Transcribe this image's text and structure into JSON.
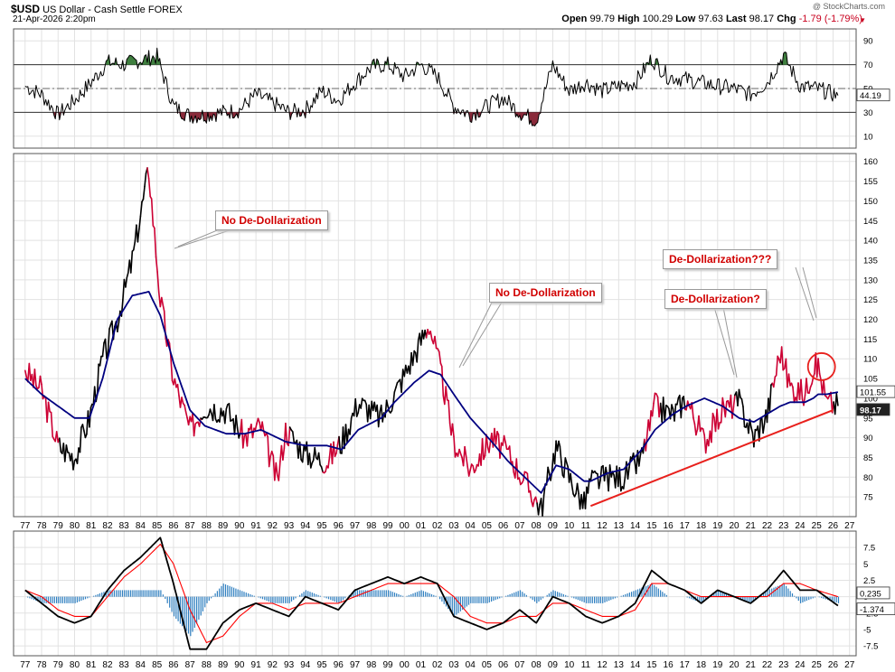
{
  "header": {
    "symbol": "$USD",
    "name": "US Dollar - Cash Settle",
    "exchange": "FOREX",
    "watermark": "@ StockCharts.com",
    "date": "21-Apr-2026 2:20pm",
    "open_label": "Open",
    "open": "99.79",
    "high_label": "High",
    "high": "100.29",
    "low_label": "Low",
    "low": "97.63",
    "last_label": "Last",
    "last": "98.17",
    "chg_label": "Chg",
    "chg": "-1.79 (-1.79%)"
  },
  "annotations": [
    {
      "id": "no-dedollar-1",
      "text": "No De-Dollarization"
    },
    {
      "id": "no-dedollar-2",
      "text": "No De-Dollarization"
    },
    {
      "id": "dedollar-q1",
      "text": "De-Dollarization?"
    },
    {
      "id": "dedollar-q3",
      "text": "De-Dollarization???"
    }
  ],
  "chart_data": [
    {
      "type": "line",
      "panel": "RSI (top indicator)",
      "x": [
        1977,
        1978,
        1979,
        1980,
        1981,
        1982,
        1983,
        1984,
        1985,
        1986,
        1987,
        1988,
        1989,
        1990,
        1991,
        1992,
        1993,
        1994,
        1995,
        1996,
        1997,
        1998,
        1999,
        2000,
        2001,
        2002,
        2003,
        2004,
        2005,
        2006,
        2007,
        2008,
        2009,
        2010,
        2011,
        2012,
        2013,
        2014,
        2015,
        2016,
        2017,
        2018,
        2019,
        2020,
        2021,
        2022,
        2023,
        2024,
        2025,
        2026.3
      ],
      "series": [
        {
          "name": "RSI",
          "values": [
            52,
            45,
            28,
            40,
            55,
            72,
            70,
            74,
            77,
            35,
            27,
            28,
            30,
            32,
            45,
            38,
            30,
            32,
            48,
            40,
            55,
            68,
            70,
            60,
            70,
            60,
            35,
            28,
            35,
            42,
            30,
            23,
            70,
            48,
            55,
            48,
            52,
            55,
            75,
            60,
            58,
            55,
            52,
            50,
            45,
            55,
            78,
            52,
            50,
            44.19
          ]
        }
      ],
      "yticks": [
        10,
        30,
        50,
        70,
        90
      ],
      "reference_lines": [
        70,
        30
      ],
      "last_value_label": "44.19",
      "ylim": [
        0,
        100
      ]
    },
    {
      "type": "line",
      "panel": "Price (monthly)",
      "title": "$USD US Dollar - Cash Settle FOREX",
      "x": [
        1977,
        1978,
        1979,
        1980,
        1980.9,
        1981.7,
        1982.6,
        1983.5,
        1984.5,
        1985.2,
        1986,
        1987,
        1987.9,
        1989.2,
        1990.3,
        1991.3,
        1992.3,
        1992.8,
        1994,
        1995.3,
        1996.2,
        1997.2,
        1998.6,
        1999.4,
        2000.6,
        2001.5,
        2002.2,
        2003,
        2004,
        2005.3,
        2006.3,
        2007.3,
        2008.3,
        2009.2,
        2010,
        2010.9,
        2011.3,
        2012.3,
        2013.3,
        2014.4,
        2015.2,
        2016.3,
        2017.1,
        2018.2,
        2019.3,
        2020.3,
        2021.2,
        2022,
        2022.8,
        2023.4,
        2024.3,
        2024.8,
        2025.1,
        2025.6,
        2026.3
      ],
      "series": [
        {
          "name": "Price",
          "values": [
            107,
            102,
            88,
            85,
            95,
            110,
            120,
            135,
            158,
            125,
            105,
            92,
            98,
            97,
            90,
            93,
            79,
            92,
            86,
            84,
            89,
            99,
            95,
            101,
            111,
            119,
            107,
            89,
            82,
            90,
            86,
            79,
            72,
            88,
            80,
            73,
            79,
            80,
            80,
            85,
            98,
            96,
            100,
            89,
            97,
            99,
            90,
            96,
            112,
            103,
            101,
            108,
            108,
            99,
            98.17
          ]
        },
        {
          "name": "Moving average",
          "values": [
            105,
            101,
            98,
            95,
            95,
            105,
            120,
            126,
            127,
            121,
            109,
            97,
            93,
            91,
            91,
            92,
            90,
            89,
            88,
            88,
            87,
            92,
            95,
            99,
            104,
            107,
            106,
            101,
            95,
            89,
            84,
            80,
            76,
            83,
            82,
            79,
            79,
            81,
            82,
            87,
            92,
            96,
            98,
            100,
            98,
            95,
            94,
            96,
            98,
            99,
            99,
            100,
            101,
            101,
            101.55
          ]
        }
      ],
      "highlighted_segments": [
        "1977-1979",
        "1984.4-1987.6",
        "1990-1993",
        "1995-1996",
        "2001.3-2008",
        "2014.5-2015.5",
        "2017-2020",
        "2022.3-2026"
      ],
      "trendline": {
        "from": [
          2011.3,
          72.7
        ],
        "to": [
          2026,
          97
        ]
      },
      "circle_marker": {
        "x": 2025.3,
        "y": 108
      },
      "xticks": [
        "77",
        "78",
        "79",
        "80",
        "81",
        "82",
        "83",
        "84",
        "85",
        "86",
        "87",
        "88",
        "89",
        "90",
        "91",
        "92",
        "93",
        "94",
        "95",
        "96",
        "97",
        "98",
        "99",
        "00",
        "01",
        "02",
        "03",
        "04",
        "05",
        "06",
        "07",
        "08",
        "09",
        "10",
        "11",
        "12",
        "13",
        "14",
        "15",
        "16",
        "17",
        "18",
        "19",
        "20",
        "21",
        "22",
        "23",
        "24",
        "25",
        "26",
        "27"
      ],
      "yticks": [
        75,
        80,
        85,
        90,
        95,
        100,
        105,
        110,
        115,
        120,
        125,
        130,
        135,
        140,
        145,
        150,
        155,
        160
      ],
      "last_value_labels": [
        "101.55",
        "98.17"
      ],
      "ylim": [
        70,
        162
      ]
    },
    {
      "type": "line",
      "panel": "MACD (bottom indicator)",
      "x": [
        1977,
        1978,
        1979,
        1980,
        1981,
        1982,
        1983,
        1984,
        1985.2,
        1986,
        1987,
        1988,
        1989,
        1990,
        1991,
        1992,
        1993,
        1994,
        1995,
        1996,
        1997,
        1998,
        1999,
        2000,
        2001,
        2002,
        2003,
        2004,
        2005,
        2006,
        2007,
        2008,
        2009,
        2010,
        2011,
        2012,
        2013,
        2014,
        2015,
        2016,
        2017,
        2018,
        2019,
        2020,
        2021,
        2022,
        2023,
        2024,
        2025,
        2026.3
      ],
      "series": [
        {
          "name": "MACD",
          "values": [
            1,
            -1,
            -3,
            -4,
            -3,
            1,
            4,
            6,
            9,
            2,
            -8,
            -8,
            -4,
            -2,
            -1,
            -2,
            -3,
            0,
            -1,
            -2,
            1,
            2,
            3,
            2,
            3,
            2,
            -3,
            -4,
            -5,
            -4,
            -2,
            -4,
            0,
            -1,
            -3,
            -4,
            -3,
            -1,
            4,
            2,
            1,
            -1,
            1,
            0,
            -1,
            1,
            4,
            1,
            1,
            -1.374
          ]
        },
        {
          "name": "Signal",
          "values": [
            1,
            0,
            -2,
            -3,
            -3,
            0,
            3,
            5,
            8,
            5,
            -2,
            -7,
            -6,
            -3,
            -1,
            -1,
            -2,
            -1,
            -1,
            -1,
            0,
            1,
            2,
            2,
            2,
            2,
            0,
            -3,
            -4,
            -4,
            -3,
            -3,
            -1,
            -1,
            -2,
            -3,
            -3,
            -2,
            2,
            2,
            1,
            0,
            0,
            0,
            0,
            0,
            2,
            2,
            1,
            0
          ]
        },
        {
          "name": "Histogram",
          "values": [
            0,
            -1,
            -1,
            -1,
            0,
            1,
            1,
            1,
            1,
            -3,
            -6,
            -1,
            2,
            1,
            0,
            -1,
            -1,
            1,
            0,
            -1,
            1,
            1,
            1,
            0,
            1,
            0,
            -3,
            -1,
            -1,
            0,
            1,
            -1,
            1,
            0,
            -1,
            -1,
            0,
            1,
            2,
            0,
            0,
            -1,
            1,
            0,
            -1,
            1,
            2,
            -1,
            0,
            -1
          ]
        }
      ],
      "xticks": [
        "77",
        "78",
        "79",
        "80",
        "81",
        "82",
        "83",
        "84",
        "85",
        "86",
        "87",
        "88",
        "89",
        "90",
        "91",
        "92",
        "93",
        "94",
        "95",
        "96",
        "97",
        "98",
        "99",
        "00",
        "01",
        "02",
        "03",
        "04",
        "05",
        "06",
        "07",
        "08",
        "09",
        "10",
        "11",
        "12",
        "13",
        "14",
        "15",
        "16",
        "17",
        "18",
        "19",
        "20",
        "21",
        "22",
        "23",
        "24",
        "25",
        "26",
        "27"
      ],
      "yticks": [
        -7.5,
        -5.0,
        -2.5,
        0.0,
        2.5,
        5.0,
        7.5
      ],
      "last_value_labels": [
        "0.235",
        "-1.374"
      ],
      "ylim": [
        -9,
        10
      ]
    }
  ],
  "colors": {
    "price_up": "#000000",
    "price_down": "#cc0033",
    "ma": "#000080",
    "trendline": "#e8201c",
    "rsi_over": "#3f7f3f",
    "rsi_under": "#8a2a3a",
    "histogram": "#2f7fc0",
    "signal": "#ff0000",
    "grid": "#e2e2e2"
  }
}
